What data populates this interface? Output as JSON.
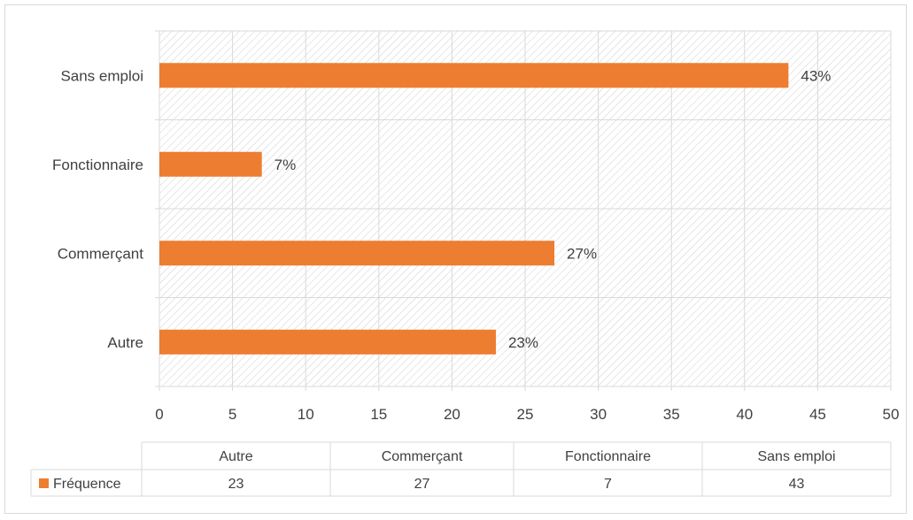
{
  "chart_data": {
    "type": "bar",
    "orientation": "horizontal",
    "categories": [
      "Autre",
      "Commerçant",
      "Fonctionnaire",
      "Sans emploi"
    ],
    "series": [
      {
        "name": "Fréquence",
        "values": [
          23,
          27,
          7,
          43
        ],
        "color": "#ED7D31"
      }
    ],
    "data_labels": [
      "23%",
      "27%",
      "7%",
      "43%"
    ],
    "xlim": [
      0,
      50
    ],
    "x_ticks": [
      "0",
      "5",
      "10",
      "15",
      "20",
      "25",
      "30",
      "35",
      "40",
      "45",
      "50"
    ],
    "grid": true,
    "plot_background": "hatched light gray",
    "data_table": {
      "headers": [
        "Autre",
        "Commerçant",
        "Fonctionnaire",
        "Sans emploi"
      ],
      "row_label": "Fréquence",
      "values": [
        "23",
        "27",
        "7",
        "43"
      ]
    },
    "colors": {
      "bar": "#ED7D31",
      "grid": "#d9d9d9",
      "hatch": "#d0d0d0",
      "text": "#404040"
    }
  }
}
